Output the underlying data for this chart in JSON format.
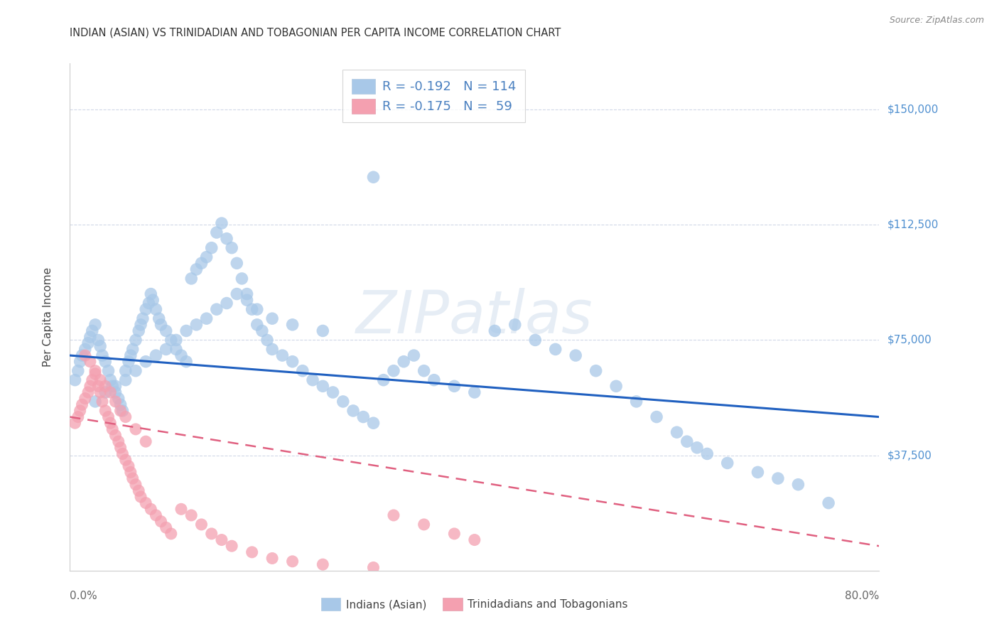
{
  "title": "INDIAN (ASIAN) VS TRINIDADIAN AND TOBAGONIAN PER CAPITA INCOME CORRELATION CHART",
  "source": "Source: ZipAtlas.com",
  "ylabel": "Per Capita Income",
  "xmin": 0.0,
  "xmax": 0.8,
  "ymin": 0,
  "ymax": 165000,
  "yticks": [
    0,
    37500,
    75000,
    112500,
    150000
  ],
  "ytick_labels": [
    "",
    "$37,500",
    "$75,000",
    "$112,500",
    "$150,000"
  ],
  "blue_color": "#a8c8e8",
  "pink_color": "#f4a0b0",
  "blue_line_color": "#2060c0",
  "pink_line_color": "#e06080",
  "background_color": "#ffffff",
  "grid_color": "#d0d8e8",
  "watermark": "ZIPatlas",
  "legend_label1": "Indians (Asian)",
  "legend_label2": "Trinidadians and Tobagonians",
  "legend_r1": "R = -0.192",
  "legend_n1": "N = 114",
  "legend_r2": "R = -0.175",
  "legend_n2": "N =  59",
  "blue_trend_x": [
    0.0,
    0.8
  ],
  "blue_trend_y": [
    70000,
    50000
  ],
  "pink_trend_x": [
    0.0,
    0.8
  ],
  "pink_trend_y": [
    50000,
    8000
  ],
  "blue_scatter_x": [
    0.005,
    0.008,
    0.01,
    0.012,
    0.015,
    0.018,
    0.02,
    0.022,
    0.025,
    0.028,
    0.03,
    0.032,
    0.035,
    0.038,
    0.04,
    0.042,
    0.045,
    0.048,
    0.05,
    0.052,
    0.055,
    0.058,
    0.06,
    0.062,
    0.065,
    0.068,
    0.07,
    0.072,
    0.075,
    0.078,
    0.08,
    0.082,
    0.085,
    0.088,
    0.09,
    0.095,
    0.1,
    0.105,
    0.11,
    0.115,
    0.12,
    0.125,
    0.13,
    0.135,
    0.14,
    0.145,
    0.15,
    0.155,
    0.16,
    0.165,
    0.17,
    0.175,
    0.18,
    0.185,
    0.19,
    0.195,
    0.2,
    0.21,
    0.22,
    0.23,
    0.24,
    0.25,
    0.26,
    0.27,
    0.28,
    0.29,
    0.3,
    0.31,
    0.32,
    0.33,
    0.34,
    0.35,
    0.36,
    0.38,
    0.4,
    0.42,
    0.44,
    0.46,
    0.48,
    0.5,
    0.52,
    0.54,
    0.56,
    0.58,
    0.6,
    0.61,
    0.62,
    0.63,
    0.65,
    0.68,
    0.7,
    0.72,
    0.75,
    0.025,
    0.035,
    0.045,
    0.055,
    0.065,
    0.075,
    0.085,
    0.095,
    0.105,
    0.115,
    0.125,
    0.135,
    0.145,
    0.155,
    0.165,
    0.175,
    0.185,
    0.2,
    0.22,
    0.25,
    0.3
  ],
  "blue_scatter_y": [
    62000,
    65000,
    68000,
    70000,
    72000,
    74000,
    76000,
    78000,
    80000,
    75000,
    73000,
    70000,
    68000,
    65000,
    62000,
    60000,
    58000,
    56000,
    54000,
    52000,
    65000,
    68000,
    70000,
    72000,
    75000,
    78000,
    80000,
    82000,
    85000,
    87000,
    90000,
    88000,
    85000,
    82000,
    80000,
    78000,
    75000,
    72000,
    70000,
    68000,
    95000,
    98000,
    100000,
    102000,
    105000,
    110000,
    113000,
    108000,
    105000,
    100000,
    95000,
    90000,
    85000,
    80000,
    78000,
    75000,
    72000,
    70000,
    68000,
    65000,
    62000,
    60000,
    58000,
    55000,
    52000,
    50000,
    48000,
    62000,
    65000,
    68000,
    70000,
    65000,
    62000,
    60000,
    58000,
    78000,
    80000,
    75000,
    72000,
    70000,
    65000,
    60000,
    55000,
    50000,
    45000,
    42000,
    40000,
    38000,
    35000,
    32000,
    30000,
    28000,
    22000,
    55000,
    58000,
    60000,
    62000,
    65000,
    68000,
    70000,
    72000,
    75000,
    78000,
    80000,
    82000,
    85000,
    87000,
    90000,
    88000,
    85000,
    82000,
    80000,
    78000,
    128000
  ],
  "pink_scatter_x": [
    0.005,
    0.008,
    0.01,
    0.012,
    0.015,
    0.018,
    0.02,
    0.022,
    0.025,
    0.028,
    0.03,
    0.032,
    0.035,
    0.038,
    0.04,
    0.042,
    0.045,
    0.048,
    0.05,
    0.052,
    0.055,
    0.058,
    0.06,
    0.062,
    0.065,
    0.068,
    0.07,
    0.075,
    0.08,
    0.085,
    0.09,
    0.095,
    0.1,
    0.11,
    0.12,
    0.13,
    0.14,
    0.15,
    0.16,
    0.18,
    0.2,
    0.22,
    0.25,
    0.3,
    0.32,
    0.35,
    0.38,
    0.4,
    0.015,
    0.02,
    0.025,
    0.03,
    0.035,
    0.04,
    0.045,
    0.05,
    0.055,
    0.065,
    0.075
  ],
  "pink_scatter_y": [
    48000,
    50000,
    52000,
    54000,
    56000,
    58000,
    60000,
    62000,
    64000,
    60000,
    58000,
    55000,
    52000,
    50000,
    48000,
    46000,
    44000,
    42000,
    40000,
    38000,
    36000,
    34000,
    32000,
    30000,
    28000,
    26000,
    24000,
    22000,
    20000,
    18000,
    16000,
    14000,
    12000,
    20000,
    18000,
    15000,
    12000,
    10000,
    8000,
    6000,
    4000,
    3000,
    2000,
    1000,
    18000,
    15000,
    12000,
    10000,
    70000,
    68000,
    65000,
    62000,
    60000,
    58000,
    55000,
    52000,
    50000,
    46000,
    42000
  ]
}
